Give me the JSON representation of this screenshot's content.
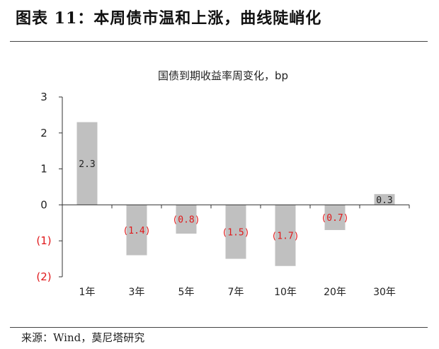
{
  "figure": {
    "title": "图表 11：本周债市温和上涨，曲线陡峭化",
    "source": "来源：Wind，莫尼塔研究"
  },
  "chart_data": {
    "type": "bar",
    "title": "国债到期收益率周变化，bp",
    "categories": [
      "1年",
      "3年",
      "5年",
      "7年",
      "10年",
      "20年",
      "30年"
    ],
    "values": [
      2.3,
      -1.4,
      -0.8,
      -1.5,
      -1.7,
      -0.7,
      0.3
    ],
    "data_labels": [
      "2.3",
      "(1.4)",
      "(0.8)",
      "(1.5)",
      "(1.7)",
      "(0.7)",
      "0.3"
    ],
    "ylim": [
      -2,
      3
    ],
    "yticks": [
      3,
      2,
      1,
      0,
      -1,
      -2
    ],
    "ytick_labels": [
      "3",
      "2",
      "1",
      "0",
      "(1)",
      "(2)"
    ],
    "xlabel": "",
    "ylabel": "",
    "grid": false,
    "legend": "none",
    "colors": {
      "bar": "#c0c0c0",
      "negative_text": "#e0191b",
      "positive_text": "#222222",
      "axis": "#333333"
    }
  }
}
